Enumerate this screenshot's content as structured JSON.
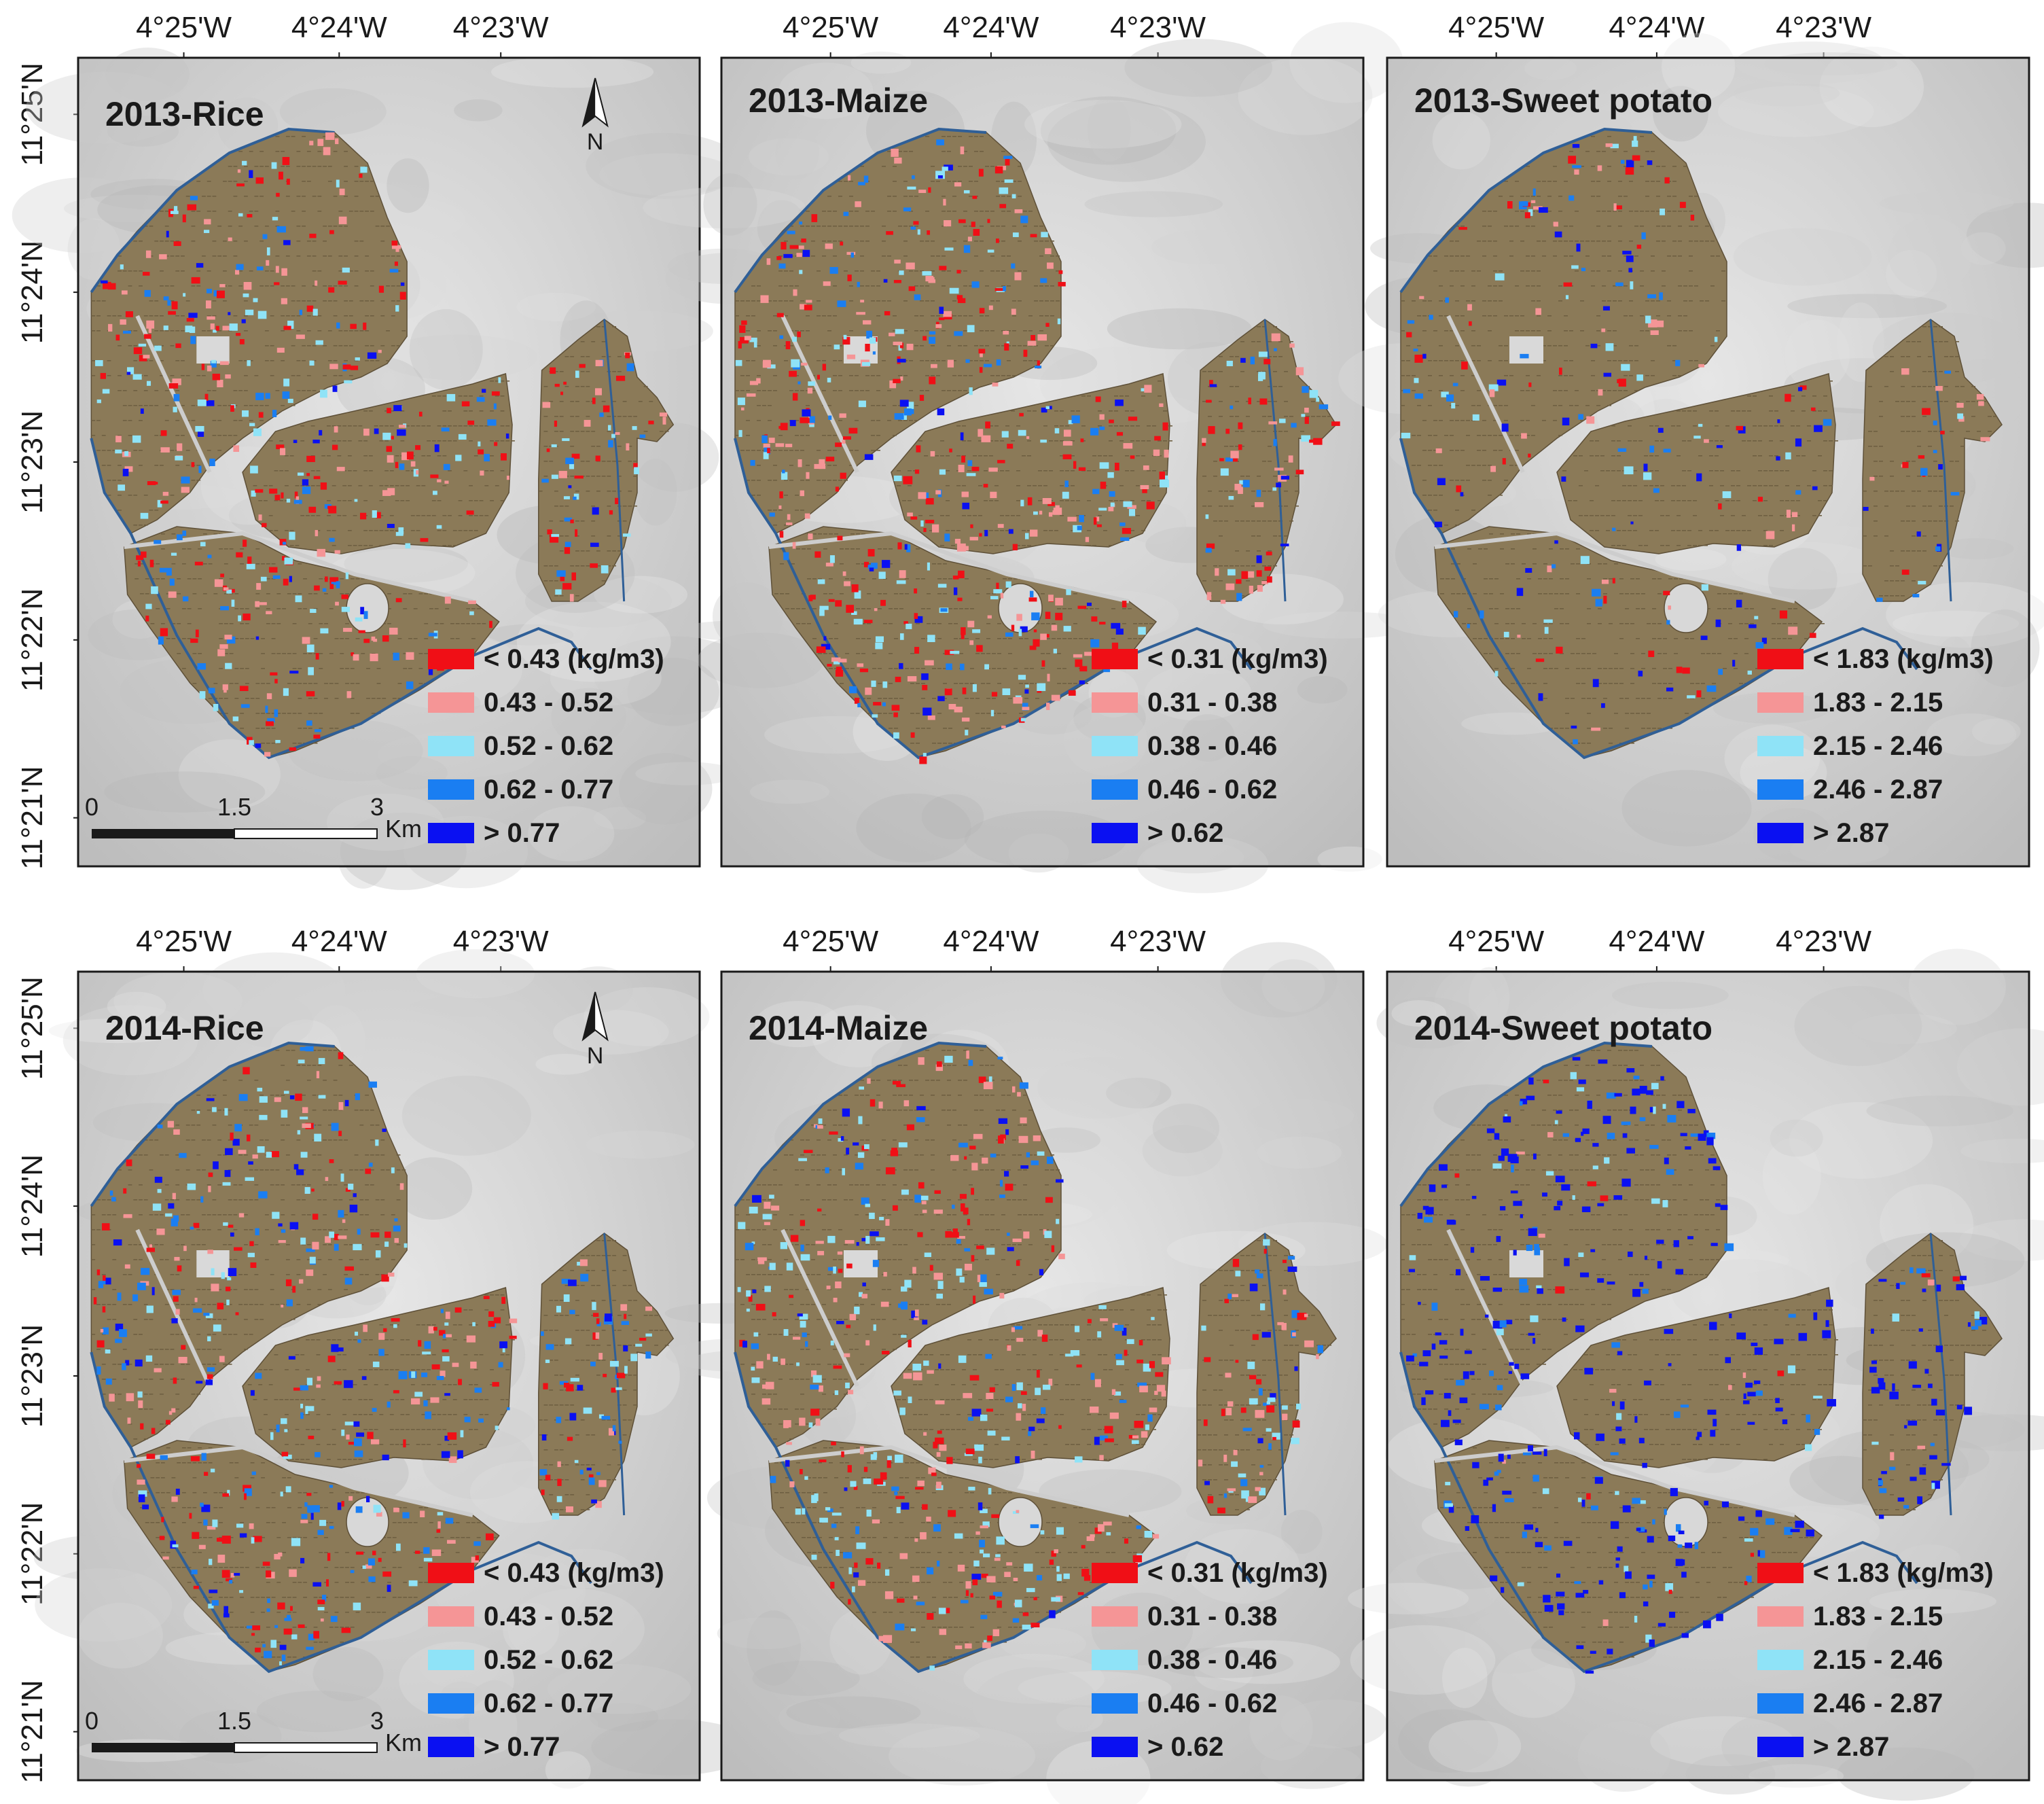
{
  "colors": {
    "class1": "#f00f16",
    "class2": "#f59596",
    "class3": "#8fe3f7",
    "class4": "#1a7ef2",
    "class5": "#0a10f2",
    "field": "#8b7a58",
    "canal": "#2f5f97",
    "satellite_base": "#cfcfcf"
  },
  "axes": {
    "longitude_labels": [
      "4°25'W",
      "4°24'W",
      "4°23'W"
    ],
    "latitude_labels": [
      "11°25'N",
      "11°24'N",
      "11°23'N",
      "11°22'N",
      "11°21'N"
    ]
  },
  "north_arrow": {
    "label": "N",
    "icon": "north-arrow-icon"
  },
  "scale_bar": {
    "ticks": [
      "0",
      "1.5",
      "3"
    ],
    "unit": "Km"
  },
  "panels": [
    {
      "id": "2013-rice",
      "title": "2013-Rice",
      "legend": [
        "< 0.43 (kg/m3)",
        "0.43 - 0.52",
        "0.52 - 0.62",
        "0.62 - 0.77",
        "> 0.77"
      ],
      "shares": [
        0.3,
        0.22,
        0.22,
        0.18,
        0.08
      ]
    },
    {
      "id": "2013-maize",
      "title": "2013-Maize",
      "legend": [
        "< 0.31 (kg/m3)",
        "0.31 - 0.38",
        "0.38 - 0.46",
        "0.46 - 0.62",
        "> 0.62"
      ],
      "shares": [
        0.3,
        0.3,
        0.2,
        0.14,
        0.06
      ]
    },
    {
      "id": "2013-sweet-potato",
      "title": "2013-Sweet potato",
      "legend": [
        "< 1.83 (kg/m3)",
        "1.83 - 2.15",
        "2.15 - 2.46",
        "2.46 - 2.87",
        "> 2.87"
      ],
      "shares": [
        0.22,
        0.18,
        0.16,
        0.22,
        0.22
      ]
    },
    {
      "id": "2014-rice",
      "title": "2014-Rice",
      "legend": [
        "< 0.43 (kg/m3)",
        "0.43 - 0.52",
        "0.52 - 0.62",
        "0.62 - 0.77",
        "> 0.77"
      ],
      "shares": [
        0.22,
        0.2,
        0.22,
        0.22,
        0.14
      ]
    },
    {
      "id": "2014-maize",
      "title": "2014-Maize",
      "legend": [
        "<  0.31 (kg/m3)",
        "0.31 - 0.38",
        "0.38 - 0.46",
        "0.46 - 0.62",
        "> 0.62"
      ],
      "shares": [
        0.22,
        0.3,
        0.26,
        0.16,
        0.06
      ]
    },
    {
      "id": "2014-sweet-potato",
      "title": "2014-Sweet potato",
      "legend": [
        "< 1.83 (kg/m3)",
        "1.83 - 2.15",
        "2.15 - 2.46",
        "2.46 - 2.87",
        "> 2.87"
      ],
      "shares": [
        0.03,
        0.03,
        0.08,
        0.18,
        0.68
      ]
    }
  ]
}
